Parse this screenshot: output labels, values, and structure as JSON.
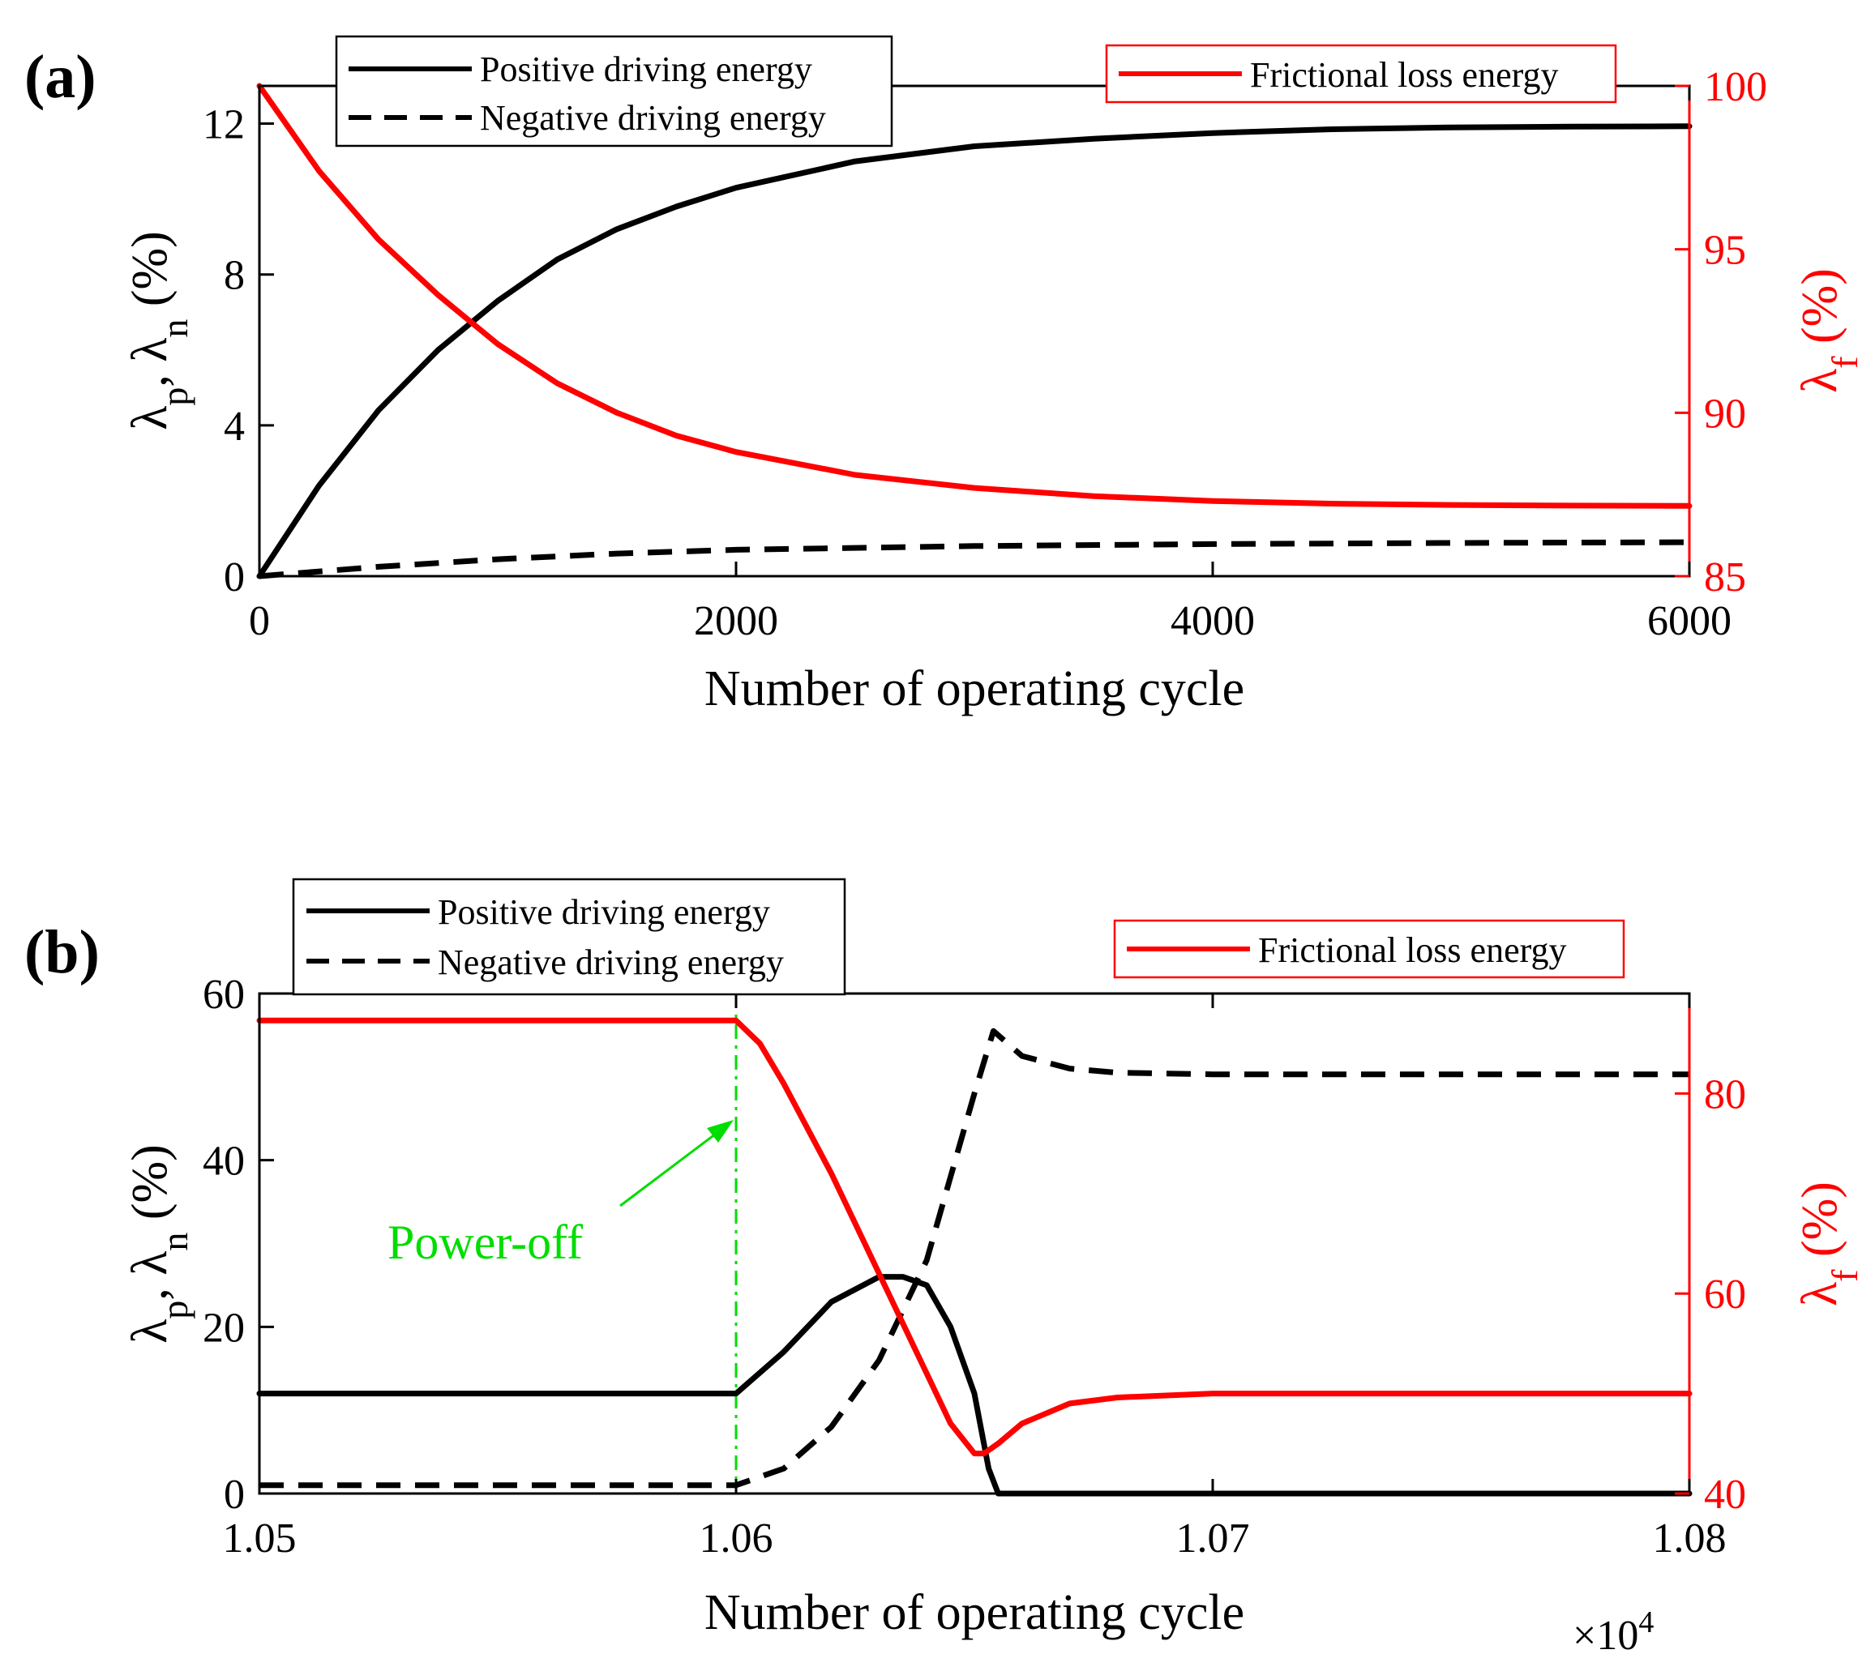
{
  "colors": {
    "axis_left": "#000000",
    "axis_right": "#ff0000",
    "power_off": "#00dd00"
  },
  "chart_data": [
    {
      "type": "line",
      "panel_label": "(a)",
      "xlabel": "Number of operating cycle",
      "ylabel_left": "λp, λn (%)",
      "ylabel_right": "λf (%)",
      "xlim": [
        0,
        6000
      ],
      "ylim_left": [
        0,
        13
      ],
      "ylim_right": [
        85,
        100
      ],
      "x_ticks": [
        0,
        2000,
        4000,
        6000
      ],
      "x_tick_labels": [
        "0",
        "2000",
        "4000",
        "6000"
      ],
      "y_left_ticks": [
        0,
        4,
        8,
        12
      ],
      "y_left_tick_labels": [
        "0",
        "4",
        "8",
        "12"
      ],
      "y_right_ticks": [
        85,
        90,
        95,
        100
      ],
      "y_right_tick_labels": [
        "85",
        "90",
        "95",
        "100"
      ],
      "legend_left": [
        "Positive driving energy",
        "Negative driving energy"
      ],
      "legend_right": [
        "Frictional loss energy"
      ],
      "series": [
        {
          "name": "Positive driving energy",
          "axis": "left",
          "style": "solid",
          "color": "#000000",
          "x": [
            0,
            250,
            500,
            750,
            1000,
            1250,
            1500,
            1750,
            2000,
            2500,
            3000,
            3500,
            4000,
            4500,
            5000,
            5500,
            6000
          ],
          "y": [
            0,
            2.4,
            4.4,
            6.0,
            7.3,
            8.4,
            9.2,
            9.8,
            10.3,
            11.0,
            11.4,
            11.6,
            11.75,
            11.85,
            11.9,
            11.92,
            11.93
          ]
        },
        {
          "name": "Negative driving energy",
          "axis": "left",
          "style": "dashed",
          "color": "#000000",
          "x": [
            0,
            500,
            1000,
            1500,
            2000,
            3000,
            4000,
            5000,
            6000
          ],
          "y": [
            0,
            0.25,
            0.45,
            0.6,
            0.7,
            0.8,
            0.85,
            0.88,
            0.9
          ]
        },
        {
          "name": "Frictional loss energy",
          "axis": "right",
          "style": "solid",
          "color": "#ff0000",
          "x": [
            0,
            250,
            500,
            750,
            1000,
            1250,
            1500,
            1750,
            2000,
            2500,
            3000,
            3500,
            4000,
            4500,
            5000,
            5500,
            6000
          ],
          "y": [
            100,
            97.4,
            95.3,
            93.6,
            92.1,
            90.9,
            90.0,
            89.3,
            88.8,
            88.1,
            87.7,
            87.45,
            87.3,
            87.22,
            87.18,
            87.16,
            87.15
          ]
        }
      ]
    },
    {
      "type": "line",
      "panel_label": "(b)",
      "xlabel": "Number of operating cycle",
      "x_multiplier": "×10",
      "x_multiplier_exp": "4",
      "ylabel_left": "λp, λn (%)",
      "ylabel_right": "λf (%)",
      "xlim": [
        1.05,
        1.08
      ],
      "ylim_left": [
        0,
        60
      ],
      "ylim_right": [
        40,
        90
      ],
      "x_ticks": [
        1.05,
        1.06,
        1.07,
        1.08
      ],
      "x_tick_labels": [
        "1.05",
        "1.06",
        "1.07",
        "1.08"
      ],
      "y_left_ticks": [
        0,
        20,
        40,
        60
      ],
      "y_left_tick_labels": [
        "0",
        "20",
        "40",
        "60"
      ],
      "y_right_ticks": [
        40,
        60,
        80
      ],
      "y_right_tick_labels": [
        "40",
        "60",
        "80"
      ],
      "legend_left": [
        "Positive driving energy",
        "Negative driving energy"
      ],
      "legend_right": [
        "Frictional loss energy"
      ],
      "annotation": {
        "text": "Power-off",
        "x": 1.06
      },
      "series": [
        {
          "name": "Positive driving energy",
          "axis": "left",
          "style": "solid",
          "color": "#000000",
          "x": [
            1.05,
            1.06,
            1.061,
            1.062,
            1.063,
            1.0635,
            1.064,
            1.0645,
            1.065,
            1.0653,
            1.0655,
            1.07,
            1.08
          ],
          "y": [
            12,
            12,
            17,
            23,
            26,
            26,
            25,
            20,
            12,
            3,
            0,
            0,
            0
          ]
        },
        {
          "name": "Negative driving energy",
          "axis": "left",
          "style": "dashed",
          "color": "#000000",
          "x": [
            1.05,
            1.06,
            1.061,
            1.062,
            1.063,
            1.064,
            1.0645,
            1.065,
            1.0654,
            1.066,
            1.067,
            1.068,
            1.07,
            1.08
          ],
          "y": [
            1,
            1,
            3,
            8,
            16,
            28,
            38,
            48,
            55.5,
            52.5,
            51,
            50.5,
            50.3,
            50.3
          ]
        },
        {
          "name": "Frictional loss energy",
          "axis": "right",
          "style": "solid",
          "color": "#ff0000",
          "x": [
            1.05,
            1.06,
            1.0605,
            1.061,
            1.062,
            1.063,
            1.064,
            1.0645,
            1.065,
            1.0652,
            1.0655,
            1.066,
            1.067,
            1.068,
            1.07,
            1.08
          ],
          "y": [
            87.3,
            87.3,
            85,
            81,
            72,
            62,
            52,
            47,
            44,
            44,
            45,
            47,
            49,
            49.6,
            50,
            50
          ]
        }
      ]
    }
  ]
}
